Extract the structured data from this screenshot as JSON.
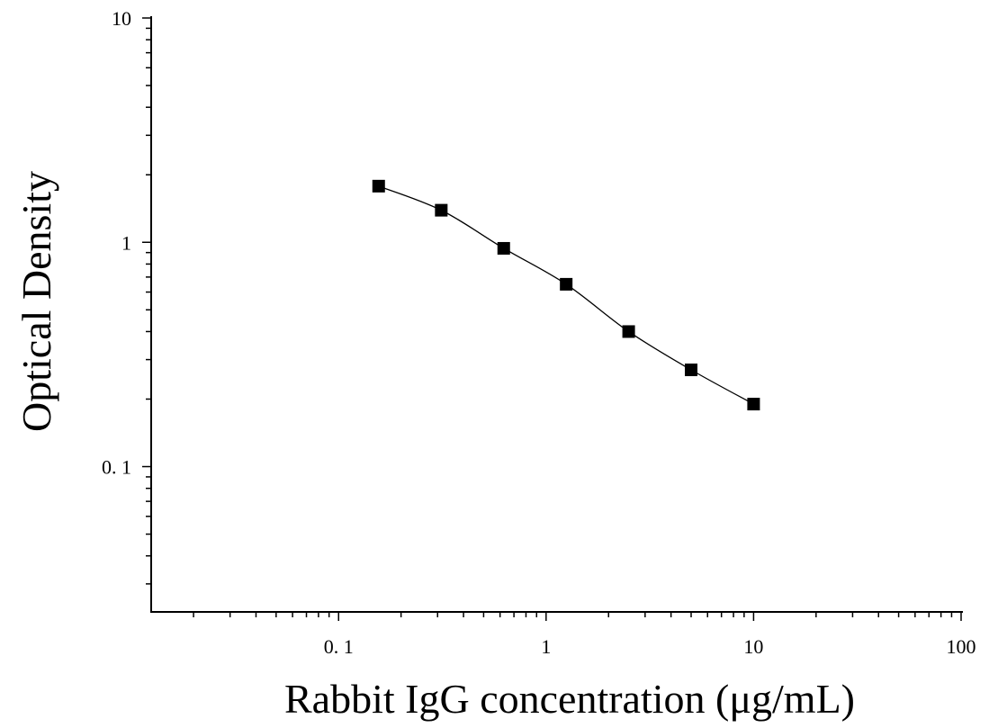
{
  "chart_data": {
    "type": "scatter",
    "title": "",
    "xlabel": "Rabbit IgG concentration (μg/mL)",
    "ylabel": "Optical Density",
    "x_scale": "log",
    "y_scale": "log",
    "xlim": [
      0.0125,
      100
    ],
    "ylim": [
      0.0225,
      10
    ],
    "x_ticks": [
      {
        "value": 0.1,
        "label": "0. 1"
      },
      {
        "value": 1,
        "label": "1"
      },
      {
        "value": 10,
        "label": "10"
      },
      {
        "value": 100,
        "label": "100"
      }
    ],
    "y_ticks": [
      {
        "value": 0.1,
        "label": "0. 1"
      },
      {
        "value": 1,
        "label": "1"
      },
      {
        "value": 10,
        "label": "10"
      }
    ],
    "grid": false,
    "legend": "none",
    "series": [
      {
        "marker": "square",
        "color": "#000000",
        "fit_line": true,
        "points": [
          {
            "x": 0.156,
            "y": 1.78
          },
          {
            "x": 0.3125,
            "y": 1.39
          },
          {
            "x": 0.625,
            "y": 0.94
          },
          {
            "x": 1.25,
            "y": 0.65
          },
          {
            "x": 2.5,
            "y": 0.4
          },
          {
            "x": 5,
            "y": 0.27
          },
          {
            "x": 10,
            "y": 0.19
          }
        ]
      }
    ]
  }
}
